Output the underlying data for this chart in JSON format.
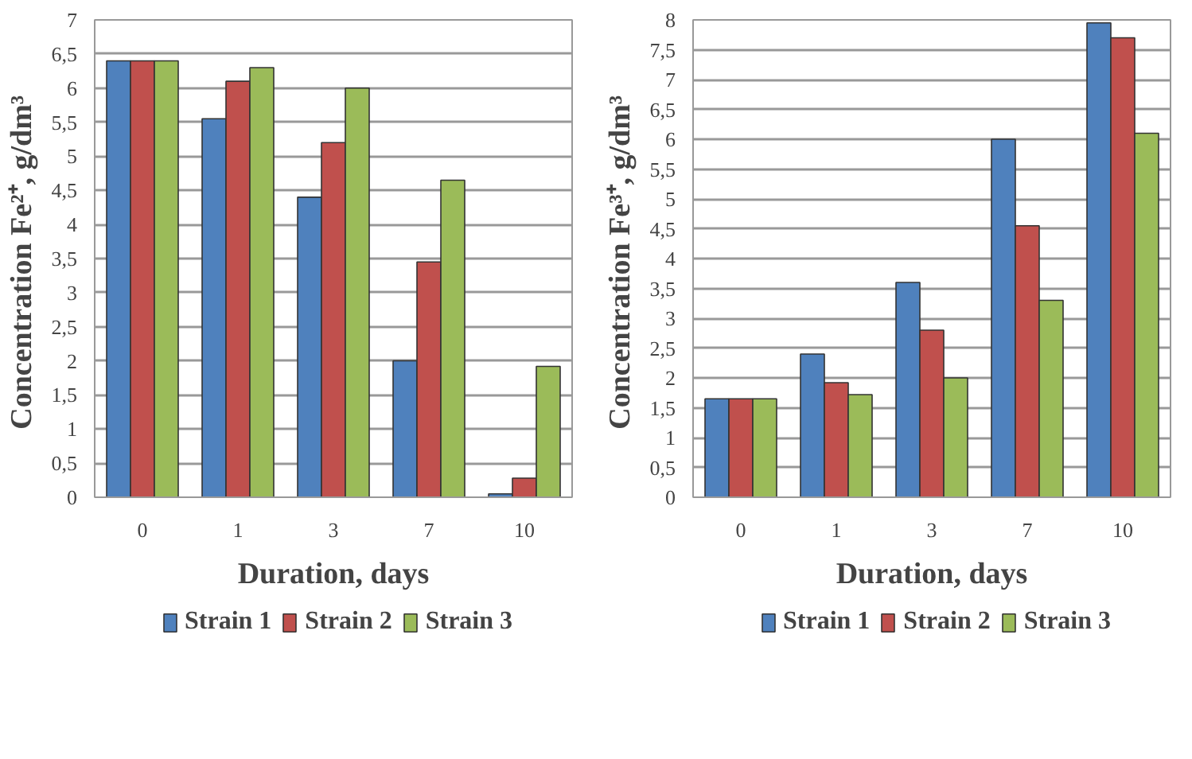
{
  "chart_data": [
    {
      "type": "bar",
      "xlabel": "Duration, days",
      "ylabel": "Concentration  Fe²⁺, g/dm³",
      "categories": [
        "0",
        "1",
        "3",
        "7",
        "10"
      ],
      "series": [
        {
          "name": "Strain 1",
          "color": "#4f81bd",
          "values": [
            6.4,
            5.55,
            4.4,
            2.0,
            0.05
          ]
        },
        {
          "name": "Strain 2",
          "color": "#c0504d",
          "values": [
            6.4,
            6.1,
            5.2,
            3.45,
            0.28
          ]
        },
        {
          "name": "Strain 3",
          "color": "#9bbb59",
          "values": [
            6.4,
            6.3,
            6.0,
            4.65,
            1.92
          ]
        }
      ],
      "ylim": [
        0,
        7
      ],
      "yticks": [
        0,
        {
          "value": 0.5,
          "label": "0,5"
        },
        1,
        {
          "value": 1.5,
          "label": "1,5"
        },
        2,
        {
          "value": 2.5,
          "label": "2,5"
        },
        3,
        {
          "value": 3.5,
          "label": "3,5"
        },
        4,
        {
          "value": 4.5,
          "label": "4,5"
        },
        5,
        {
          "value": 5.5,
          "label": "5,5"
        },
        6,
        {
          "value": 6.5,
          "label": "6,5"
        },
        7
      ],
      "grid": "y",
      "legend": "bottom"
    },
    {
      "type": "bar",
      "xlabel": "Duration, days",
      "ylabel": "Concentration  Fe³⁺, g/dm³",
      "categories": [
        "0",
        "1",
        "3",
        "7",
        "10"
      ],
      "series": [
        {
          "name": "Strain 1",
          "color": "#4f81bd",
          "values": [
            1.65,
            2.4,
            3.6,
            6.0,
            7.95
          ]
        },
        {
          "name": "Strain 2",
          "color": "#c0504d",
          "values": [
            1.65,
            1.92,
            2.8,
            4.55,
            7.7
          ]
        },
        {
          "name": "Strain 3",
          "color": "#9bbb59",
          "values": [
            1.65,
            1.72,
            2.0,
            3.3,
            6.1
          ]
        }
      ],
      "ylim": [
        0,
        8
      ],
      "yticks": [
        0,
        {
          "value": 0.5,
          "label": "0,5"
        },
        1,
        {
          "value": 1.5,
          "label": "1,5"
        },
        2,
        {
          "value": 2.5,
          "label": "2,5"
        },
        3,
        {
          "value": 3.5,
          "label": "3,5"
        },
        4,
        {
          "value": 4.5,
          "label": "4,5"
        },
        5,
        {
          "value": 5.5,
          "label": "5,5"
        },
        6,
        {
          "value": 6.5,
          "label": "6,5"
        },
        7,
        {
          "value": 7.5,
          "label": "7,5"
        },
        8
      ],
      "grid": "y",
      "legend": "bottom"
    }
  ]
}
